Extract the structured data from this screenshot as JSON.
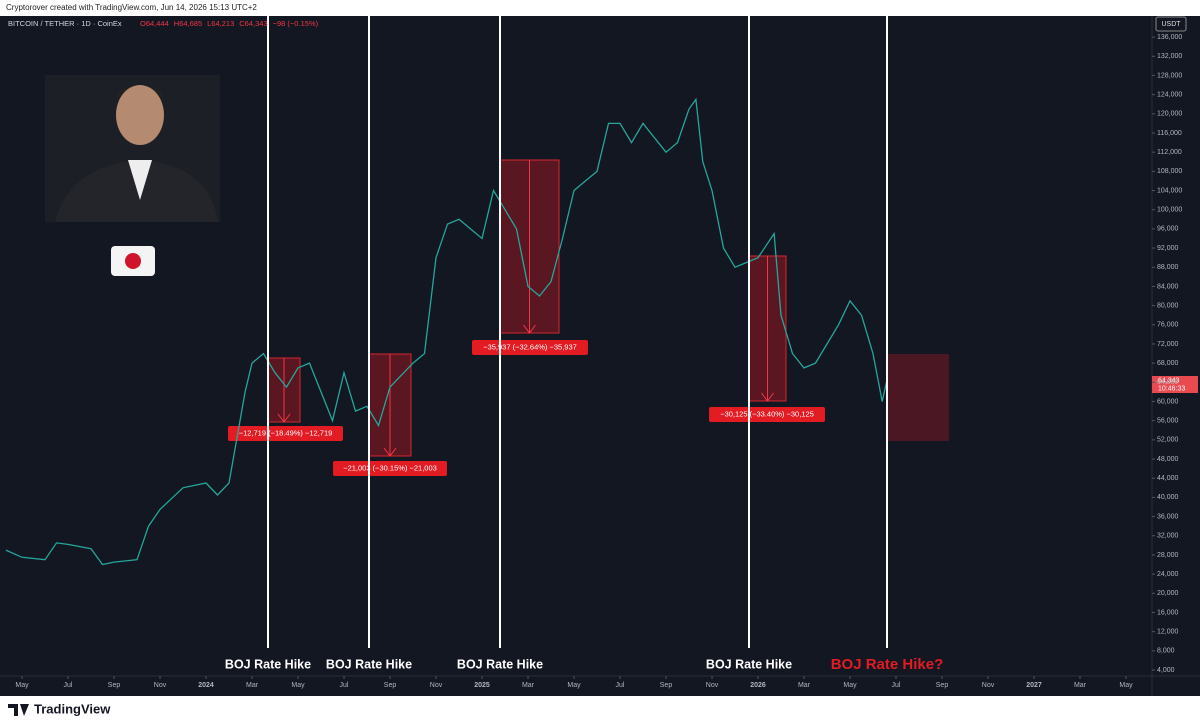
{
  "header": "Cryptorover created with TradingView.com, Jun 14, 2026 15:13 UTC+2",
  "currency": "USDT",
  "last_price": "64,343",
  "countdown": "10:46:33",
  "brand": "TradingView",
  "chart_data": {
    "type": "line",
    "title": "BITCOIN / TETHER · 1D · CoinEx",
    "ohlc": [
      "O64,444",
      "H64,685",
      "L64,213",
      "C64,343",
      "−98 (−0.15%)"
    ],
    "color": "#26a69a",
    "x": [
      3.3,
      4,
      5,
      5.5,
      6,
      7,
      7.5,
      8,
      9,
      9.5,
      10,
      11,
      11.5,
      12,
      12.5,
      13,
      13.7,
      14,
      14.5,
      15,
      15.5,
      16,
      16.5,
      17,
      17.5,
      18,
      18.5,
      19,
      19.5,
      20,
      21,
      21.5,
      22,
      22.5,
      23,
      23.5,
      24,
      24.5,
      25,
      25.5,
      26,
      26.5,
      27,
      27.5,
      28,
      28.5,
      29,
      29.5,
      30,
      30.5,
      31,
      32,
      32.5,
      33,
      33.3,
      33.6,
      34,
      34.5,
      35,
      35.5,
      36,
      36.7,
      37,
      37.5,
      38,
      38.5,
      39,
      39.5,
      40,
      40.5,
      41,
      41.4,
      41.6
    ],
    "values": [
      29000,
      27500,
      27000,
      30500,
      30200,
      29300,
      26000,
      26500,
      27000,
      34000,
      37500,
      42000,
      42500,
      43000,
      40500,
      43000,
      62000,
      68000,
      70000,
      66000,
      63000,
      67000,
      68000,
      62000,
      56000,
      66000,
      58000,
      59000,
      55000,
      63000,
      68000,
      70000,
      90000,
      97000,
      98000,
      96000,
      94000,
      104000,
      100000,
      96000,
      84000,
      82000,
      85000,
      94000,
      104000,
      106000,
      108000,
      118000,
      118000,
      114000,
      118000,
      112000,
      114000,
      121000,
      123000,
      110000,
      104000,
      92000,
      88000,
      89000,
      90000,
      95000,
      78000,
      70000,
      67000,
      68000,
      72000,
      76000,
      81000,
      78000,
      70000,
      60000,
      64343
    ],
    "xlim": [
      3.26,
      53.13
    ],
    "ylim": [
      2750,
      140400
    ],
    "xticks": [
      {
        "value": 4,
        "label": "May"
      },
      {
        "value": 6,
        "label": "Jul"
      },
      {
        "value": 8,
        "label": "Sep"
      },
      {
        "value": 10,
        "label": "Nov"
      },
      {
        "value": 12,
        "label": "2024"
      },
      {
        "value": 14,
        "label": "Mar"
      },
      {
        "value": 16,
        "label": "May"
      },
      {
        "value": 18,
        "label": "Jul"
      },
      {
        "value": 20,
        "label": "Sep"
      },
      {
        "value": 22,
        "label": "Nov"
      },
      {
        "value": 24,
        "label": "2025"
      },
      {
        "value": 26,
        "label": "Mar"
      },
      {
        "value": 28,
        "label": "May"
      },
      {
        "value": 30,
        "label": "Jul"
      },
      {
        "value": 32,
        "label": "Sep"
      },
      {
        "value": 34,
        "label": "Nov"
      },
      {
        "value": 36,
        "label": "2026"
      },
      {
        "value": 38,
        "label": "Mar"
      },
      {
        "value": 40,
        "label": "May"
      },
      {
        "value": 42,
        "label": "Jul"
      },
      {
        "value": 44,
        "label": "Sep"
      },
      {
        "value": 46,
        "label": "Nov"
      },
      {
        "value": 48,
        "label": "2027"
      },
      {
        "value": 50,
        "label": "Mar"
      },
      {
        "value": 52,
        "label": "May"
      }
    ],
    "yticks": [
      {
        "value": 4000,
        "label": "4,000"
      },
      {
        "value": 8000,
        "label": "8,000"
      },
      {
        "value": 12000,
        "label": "12,000"
      },
      {
        "value": 16000,
        "label": "16,000"
      },
      {
        "value": 20000,
        "label": "20,000"
      },
      {
        "value": 24000,
        "label": "24,000"
      },
      {
        "value": 28000,
        "label": "28,000"
      },
      {
        "value": 32000,
        "label": "32,000"
      },
      {
        "value": 36000,
        "label": "36,000"
      },
      {
        "value": 40000,
        "label": "40,000"
      },
      {
        "value": 44000,
        "label": "44,000"
      },
      {
        "value": 48000,
        "label": "48,000"
      },
      {
        "value": 52000,
        "label": "52,000"
      },
      {
        "value": 56000,
        "label": "56,000"
      },
      {
        "value": 60000,
        "label": "60,000"
      },
      {
        "value": 64000,
        "label": "64,000"
      },
      {
        "value": 68000,
        "label": "68,000"
      },
      {
        "value": 72000,
        "label": "72,000"
      },
      {
        "value": 76000,
        "label": "76,000"
      },
      {
        "value": 80000,
        "label": "80,000"
      },
      {
        "value": 84000,
        "label": "84,000"
      },
      {
        "value": 88000,
        "label": "88,000"
      },
      {
        "value": 92000,
        "label": "92,000"
      },
      {
        "value": 96000,
        "label": "96,000"
      },
      {
        "value": 100000,
        "label": "100,000"
      },
      {
        "value": 104000,
        "label": "104,000"
      },
      {
        "value": 108000,
        "label": "108,000"
      },
      {
        "value": 112000,
        "label": "112,000"
      },
      {
        "value": 116000,
        "label": "116,000"
      },
      {
        "value": 120000,
        "label": "120,000"
      },
      {
        "value": 124000,
        "label": "124,000"
      },
      {
        "value": 128000,
        "label": "128,000"
      },
      {
        "value": 132000,
        "label": "132,000"
      },
      {
        "value": 136000,
        "label": "136,000"
      }
    ],
    "events": [
      "BOJ Rate Hike",
      "BOJ Rate Hike",
      "BOJ Rate Hike",
      "BOJ Rate Hike",
      "BOJ Rate Hike?"
    ],
    "measurements": [
      "−12,719 (−18.49%) −12,719",
      "−21,003 (−30.15%) −21,003",
      "−35,937 (−32.64%) −35,937",
      "−30,125 (−33.40%) −30,125"
    ]
  }
}
